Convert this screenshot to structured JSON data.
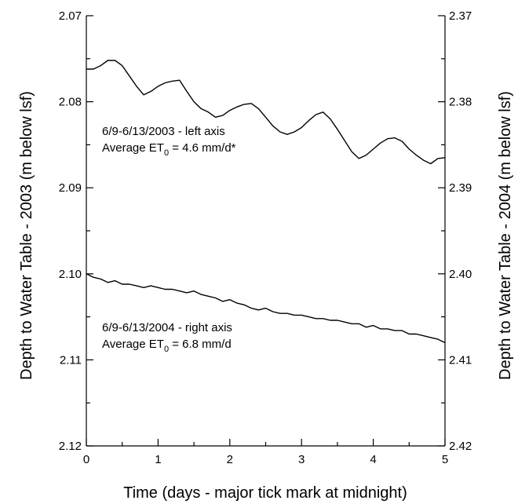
{
  "chart_data": {
    "type": "line",
    "xlabel": "Time (days - major tick mark at midnight)",
    "ylabel_left": "Depth to Water Table - 2003 (m below lsf)",
    "ylabel_right": "Depth to Water Table - 2004 (m below lsf)",
    "xlim": [
      0,
      5
    ],
    "ylim_left": [
      2.07,
      2.12
    ],
    "ylim_right": [
      2.37,
      2.42
    ],
    "y_inverted": true,
    "x_ticks": [
      "0",
      "1",
      "2",
      "3",
      "4",
      "5"
    ],
    "y_left_ticks": [
      "2.07",
      "2.08",
      "2.09",
      "2.10",
      "2.11",
      "2.12"
    ],
    "y_right_ticks": [
      "2.37",
      "2.38",
      "2.39",
      "2.40",
      "2.41",
      "2.42"
    ],
    "grid": false,
    "annotations": [
      {
        "line1": "6/9-6/13/2003 - left axis",
        "line2_prefix": "Average ET",
        "line2_sub": "0",
        "line2_suffix": " = 4.6 mm/d*"
      },
      {
        "line1": "6/9-6/13/2004 - right axis",
        "line2_prefix": "Average ET",
        "line2_sub": "0",
        "line2_suffix": " = 6.8 mm/d"
      }
    ],
    "series": [
      {
        "axis": "left",
        "x": [
          0,
          0.1,
          0.2,
          0.3,
          0.4,
          0.5,
          0.6,
          0.7,
          0.8,
          0.9,
          1.0,
          1.1,
          1.2,
          1.3,
          1.4,
          1.5,
          1.6,
          1.7,
          1.8,
          1.9,
          2.0,
          2.1,
          2.2,
          2.3,
          2.4,
          2.5,
          2.6,
          2.7,
          2.8,
          2.9,
          3.0,
          3.1,
          3.2,
          3.3,
          3.4,
          3.5,
          3.6,
          3.7,
          3.8,
          3.9,
          4.0,
          4.1,
          4.2,
          4.3,
          4.4,
          4.5,
          4.6,
          4.7,
          4.8,
          4.9,
          5.0
        ],
        "values": [
          2.0762,
          2.0762,
          2.0758,
          2.0752,
          2.0752,
          2.0758,
          2.077,
          2.0782,
          2.0792,
          2.0788,
          2.0782,
          2.0778,
          2.0776,
          2.0775,
          2.0788,
          2.08,
          2.0808,
          2.0812,
          2.0818,
          2.0816,
          2.081,
          2.0806,
          2.0803,
          2.0802,
          2.0808,
          2.0818,
          2.0828,
          2.0835,
          2.0838,
          2.0835,
          2.083,
          2.0822,
          2.0815,
          2.0812,
          2.082,
          2.0832,
          2.0845,
          2.0858,
          2.0866,
          2.0862,
          2.0855,
          2.0848,
          2.0843,
          2.0842,
          2.0846,
          2.0855,
          2.0862,
          2.0868,
          2.0872,
          2.0866,
          2.0865
        ]
      },
      {
        "axis": "right",
        "x": [
          0,
          0.1,
          0.2,
          0.3,
          0.4,
          0.5,
          0.6,
          0.7,
          0.8,
          0.9,
          1.0,
          1.1,
          1.2,
          1.3,
          1.4,
          1.5,
          1.6,
          1.7,
          1.8,
          1.9,
          2.0,
          2.1,
          2.2,
          2.3,
          2.4,
          2.5,
          2.6,
          2.7,
          2.8,
          2.9,
          3.0,
          3.1,
          3.2,
          3.3,
          3.4,
          3.5,
          3.6,
          3.7,
          3.8,
          3.9,
          4.0,
          4.1,
          4.2,
          4.3,
          4.4,
          4.5,
          4.6,
          4.7,
          4.8,
          4.9,
          5.0
        ],
        "values": [
          2.4,
          2.4004,
          2.4006,
          2.401,
          2.4008,
          2.4012,
          2.4012,
          2.4014,
          2.4016,
          2.4014,
          2.4016,
          2.4018,
          2.4018,
          2.402,
          2.4022,
          2.402,
          2.4024,
          2.4026,
          2.4028,
          2.4032,
          2.403,
          2.4034,
          2.4036,
          2.404,
          2.4042,
          2.404,
          2.4044,
          2.4046,
          2.4046,
          2.4048,
          2.4048,
          2.405,
          2.4052,
          2.4052,
          2.4054,
          2.4054,
          2.4056,
          2.4058,
          2.4058,
          2.4062,
          2.406,
          2.4064,
          2.4064,
          2.4066,
          2.4066,
          2.407,
          2.407,
          2.4072,
          2.4074,
          2.4076,
          2.408
        ]
      }
    ]
  }
}
